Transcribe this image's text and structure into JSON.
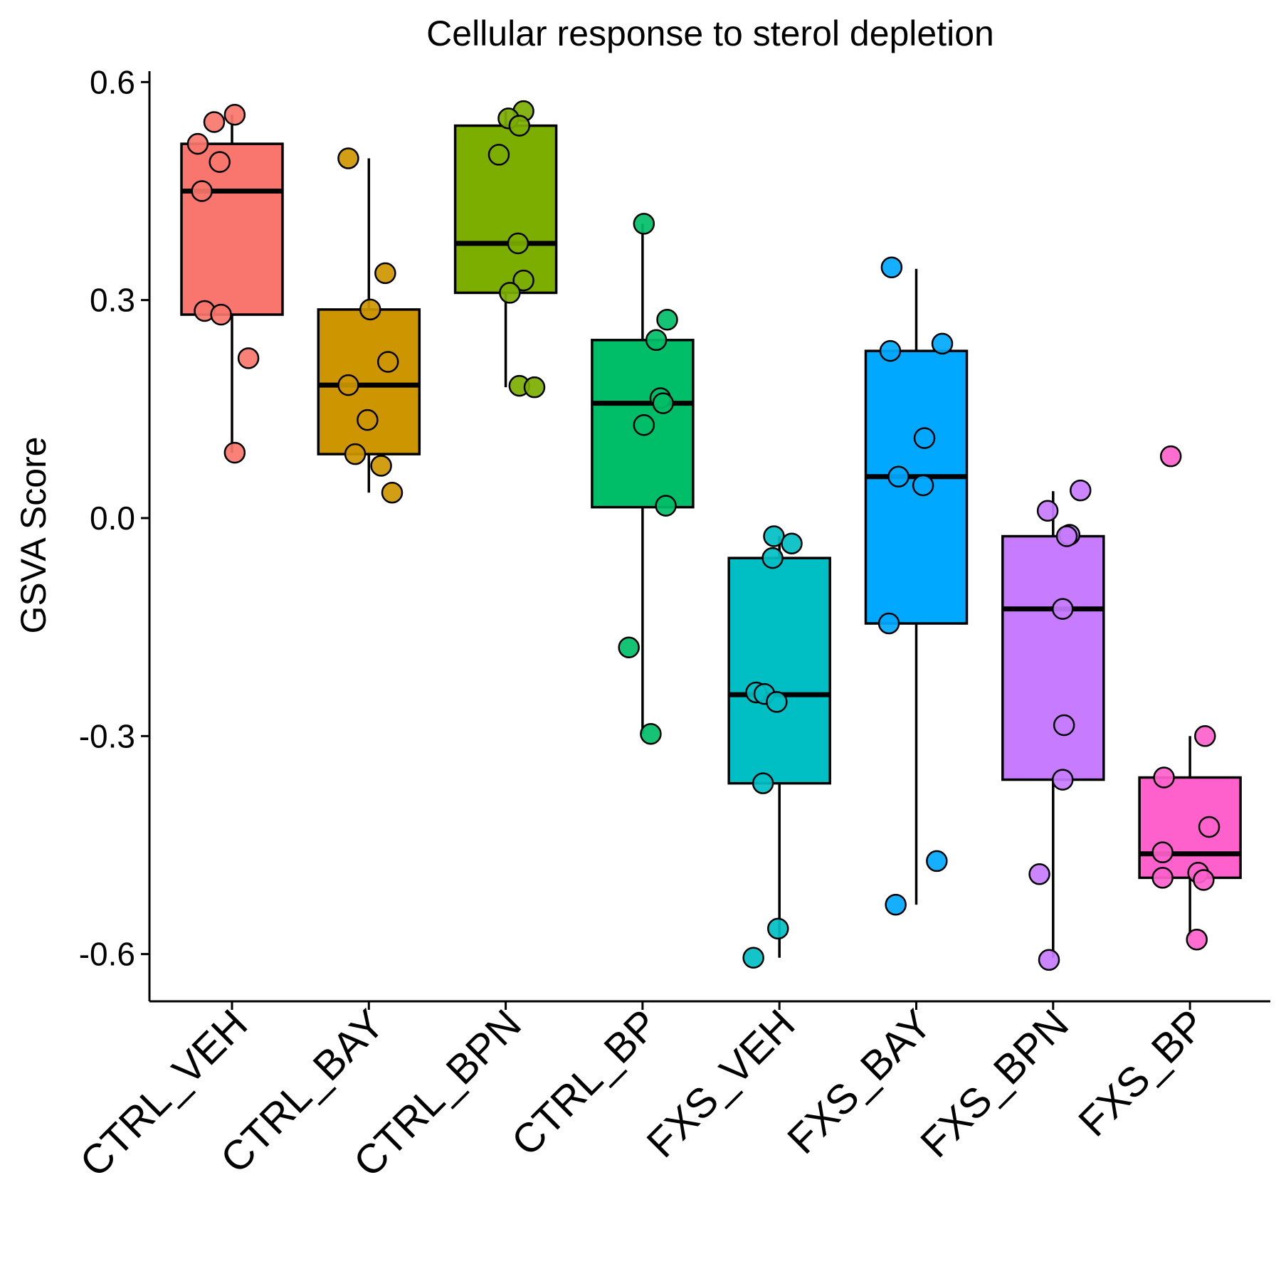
{
  "chart_data": {
    "type": "box",
    "title": "Cellular response to sterol depletion",
    "xlabel": "",
    "ylabel": "GSVA Score",
    "ylim": [
      -0.665,
      0.615
    ],
    "yticks": [
      -0.6,
      -0.3,
      0.0,
      0.3,
      0.6
    ],
    "ytick_labels": [
      "-0.6",
      "-0.3",
      "0.0",
      "0.3",
      "0.6"
    ],
    "grid": false,
    "legend": "none",
    "categories": [
      "CTRL_VEH",
      "CTRL_BAY",
      "CTRL_BPN",
      "CTRL_BP",
      "FXS_VEH",
      "FXS_BAY",
      "FXS_BPN",
      "FXS_BP"
    ],
    "series": [
      {
        "category": "CTRL_VEH",
        "color": "#F8766D",
        "q1": 0.28,
        "median": 0.45,
        "q3": 0.515,
        "whisker_low": 0.09,
        "whisker_high": 0.555,
        "points": [
          [
            0.02,
            0.555
          ],
          [
            -0.13,
            0.545
          ],
          [
            -0.25,
            0.515
          ],
          [
            -0.09,
            0.49
          ],
          [
            -0.22,
            0.45
          ],
          [
            -0.2,
            0.285
          ],
          [
            -0.08,
            0.28
          ],
          [
            0.12,
            0.22
          ],
          [
            0.02,
            0.09
          ]
        ]
      },
      {
        "category": "CTRL_BAY",
        "color": "#CD9600",
        "q1": 0.088,
        "median": 0.183,
        "q3": 0.287,
        "whisker_low": 0.035,
        "whisker_high": 0.495,
        "points": [
          [
            -0.15,
            0.495
          ],
          [
            0.12,
            0.337
          ],
          [
            0.01,
            0.287
          ],
          [
            0.14,
            0.215
          ],
          [
            -0.15,
            0.183
          ],
          [
            -0.01,
            0.135
          ],
          [
            -0.1,
            0.088
          ],
          [
            0.09,
            0.072
          ],
          [
            0.17,
            0.035
          ]
        ]
      },
      {
        "category": "CTRL_BPN",
        "color": "#7CAE00",
        "q1": 0.31,
        "median": 0.378,
        "q3": 0.54,
        "whisker_low": 0.18,
        "whisker_high": 0.56,
        "points": [
          [
            0.13,
            0.56
          ],
          [
            0.02,
            0.55
          ],
          [
            0.1,
            0.54
          ],
          [
            -0.05,
            0.5
          ],
          [
            0.09,
            0.378
          ],
          [
            0.13,
            0.327
          ],
          [
            0.03,
            0.31
          ],
          [
            0.1,
            0.182
          ],
          [
            0.21,
            0.18
          ]
        ]
      },
      {
        "category": "CTRL_BP",
        "color": "#00BE67",
        "q1": 0.015,
        "median": 0.158,
        "q3": 0.245,
        "whisker_low": -0.297,
        "whisker_high": 0.405,
        "points": [
          [
            0.01,
            0.405
          ],
          [
            0.18,
            0.273
          ],
          [
            0.1,
            0.245
          ],
          [
            0.13,
            0.165
          ],
          [
            0.15,
            0.158
          ],
          [
            0.01,
            0.128
          ],
          [
            0.17,
            0.017
          ],
          [
            -0.1,
            -0.178
          ],
          [
            0.06,
            -0.297
          ]
        ]
      },
      {
        "category": "FXS_VEH",
        "color": "#00BFC4",
        "q1": -0.365,
        "median": -0.243,
        "q3": -0.055,
        "whisker_low": -0.605,
        "whisker_high": -0.025,
        "points": [
          [
            -0.04,
            -0.025
          ],
          [
            0.09,
            -0.035
          ],
          [
            -0.05,
            -0.055
          ],
          [
            -0.17,
            -0.24
          ],
          [
            -0.11,
            -0.242
          ],
          [
            -0.02,
            -0.253
          ],
          [
            -0.12,
            -0.365
          ],
          [
            -0.01,
            -0.565
          ],
          [
            -0.19,
            -0.605
          ]
        ]
      },
      {
        "category": "FXS_BAY",
        "color": "#00A9FF",
        "q1": -0.145,
        "median": 0.057,
        "q3": 0.23,
        "whisker_low": -0.532,
        "whisker_high": 0.343,
        "points": [
          [
            -0.18,
            0.345
          ],
          [
            0.19,
            0.24
          ],
          [
            -0.19,
            0.23
          ],
          [
            0.06,
            0.11
          ],
          [
            -0.13,
            0.057
          ],
          [
            0.05,
            0.045
          ],
          [
            -0.2,
            -0.145
          ],
          [
            0.15,
            -0.472
          ],
          [
            -0.15,
            -0.532
          ]
        ]
      },
      {
        "category": "FXS_BPN",
        "color": "#C77CFF",
        "q1": -0.36,
        "median": -0.125,
        "q3": -0.025,
        "whisker_low": -0.605,
        "whisker_high": 0.037,
        "points": [
          [
            0.2,
            0.038
          ],
          [
            -0.04,
            0.01
          ],
          [
            0.12,
            -0.023
          ],
          [
            0.1,
            -0.025
          ],
          [
            0.07,
            -0.125
          ],
          [
            0.08,
            -0.285
          ],
          [
            0.07,
            -0.36
          ],
          [
            -0.1,
            -0.49
          ],
          [
            -0.03,
            -0.608
          ]
        ]
      },
      {
        "category": "FXS_BP",
        "color": "#FF61CC",
        "q1": -0.495,
        "median": -0.462,
        "q3": -0.357,
        "whisker_low": -0.575,
        "whisker_high": -0.3,
        "points": [
          [
            -0.14,
            0.085
          ],
          [
            0.11,
            -0.3
          ],
          [
            -0.19,
            -0.357
          ],
          [
            0.14,
            -0.425
          ],
          [
            -0.2,
            -0.46
          ],
          [
            0.06,
            -0.488
          ],
          [
            0.1,
            -0.498
          ],
          [
            -0.2,
            -0.495
          ],
          [
            0.05,
            -0.58
          ]
        ]
      }
    ]
  }
}
